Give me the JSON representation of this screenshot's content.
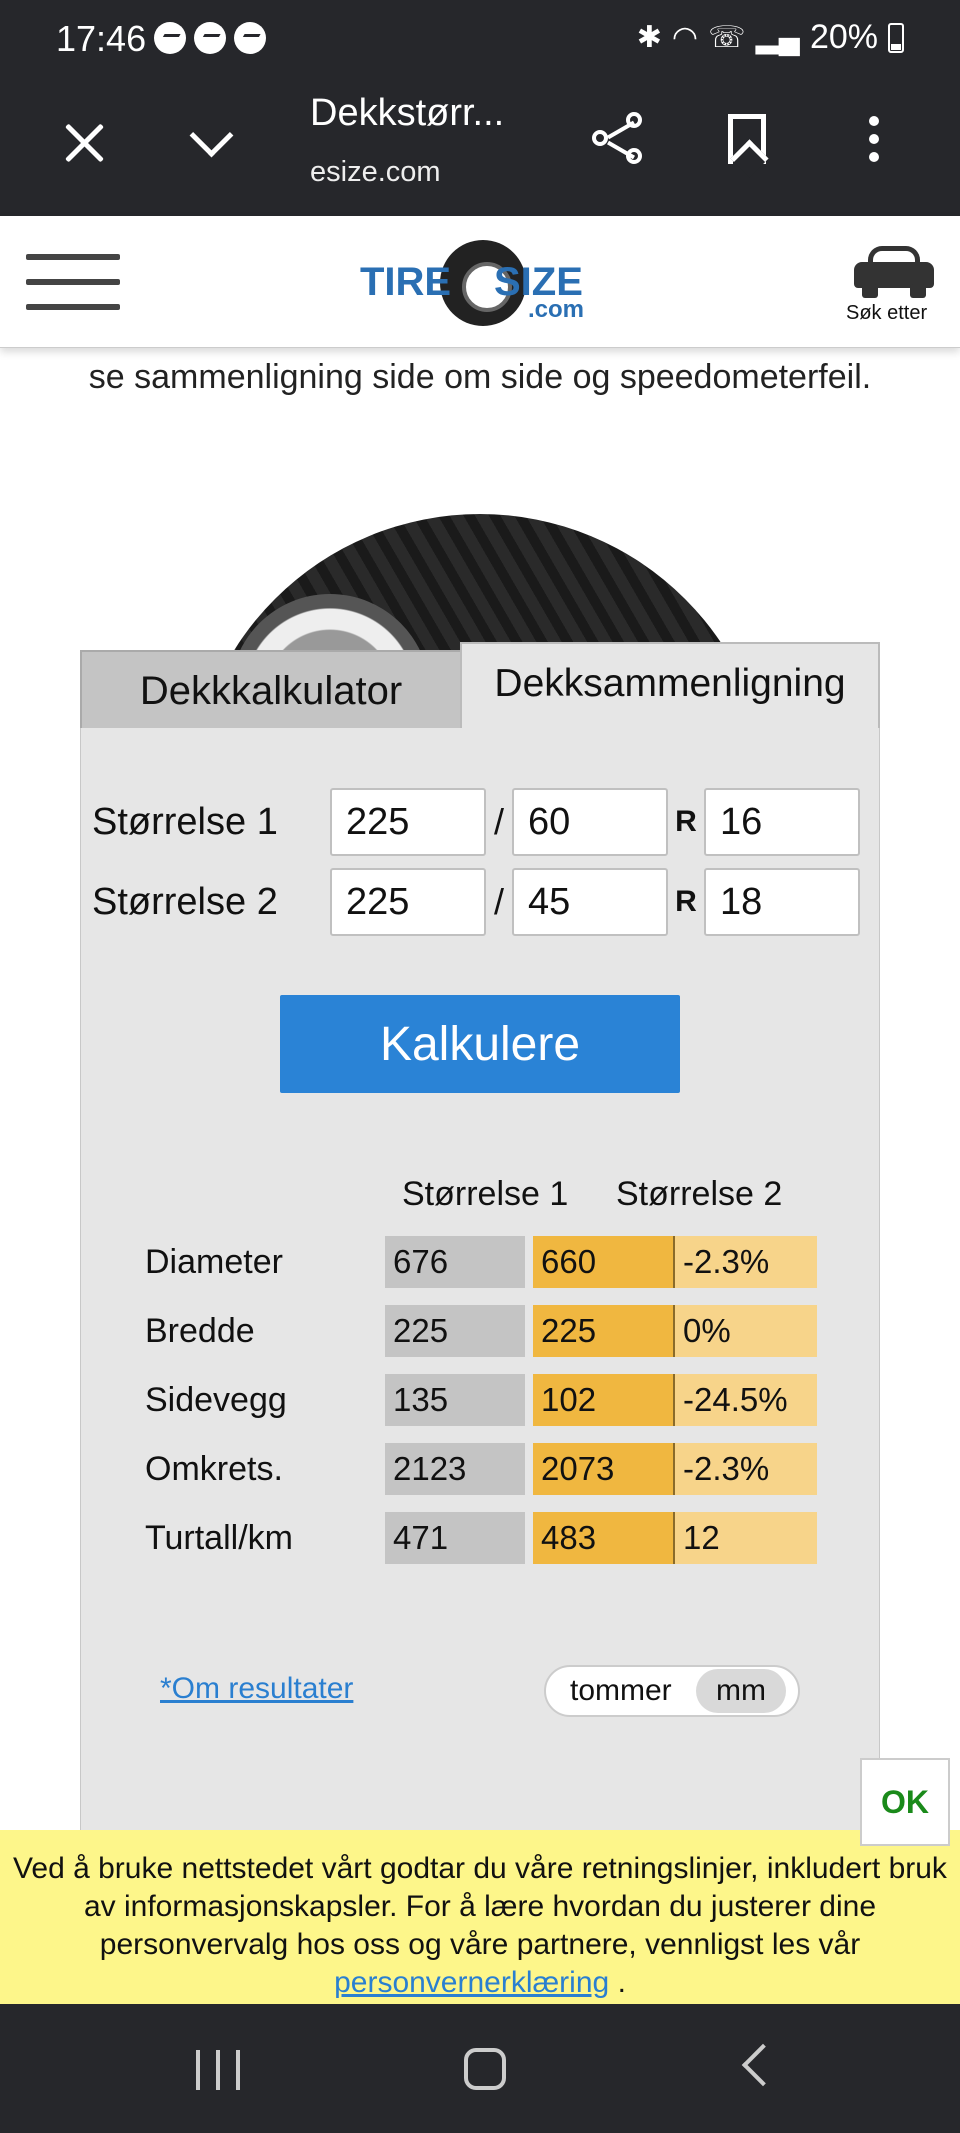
{
  "status_bar": {
    "time": "17:46",
    "battery": "20%"
  },
  "browser": {
    "title": "Dekkstørr...",
    "url": "esize.com"
  },
  "site": {
    "logo_part1": "TIRE",
    "logo_part2": "SIZE",
    "logo_com": ".com",
    "search_label": "Søk etter"
  },
  "intro_text": "se sammenligning side om side og speedometerfeil.",
  "tabs": [
    {
      "label": "Dekkkalkulator"
    },
    {
      "label": "Dekksammenligning"
    }
  ],
  "sizes": [
    {
      "label": "Størrelse 1",
      "width": "225",
      "aspect": "60",
      "rim": "16"
    },
    {
      "label": "Størrelse 2",
      "width": "225",
      "aspect": "45",
      "rim": "18"
    }
  ],
  "separator": "/",
  "rim_marker": "R",
  "calculate_label": "Kalkulere",
  "results": {
    "headers": [
      "Størrelse 1",
      "Størrelse 2"
    ],
    "rows": [
      {
        "name": "Diameter",
        "v1": "676",
        "v2": "660",
        "diff": "-2.3%"
      },
      {
        "name": "Bredde",
        "v1": "225",
        "v2": "225",
        "diff": "0%"
      },
      {
        "name": "Sidevegg",
        "v1": "135",
        "v2": "102",
        "diff": "-24.5%"
      },
      {
        "name": "Omkrets.",
        "v1": "2123",
        "v2": "2073",
        "diff": "-2.3%"
      },
      {
        "name": "Turtall/km",
        "v1": "471",
        "v2": "483",
        "diff": "12"
      }
    ]
  },
  "about_link": "*Om resultater",
  "units": {
    "option1": "tommer",
    "option2": "mm",
    "selected": "mm"
  },
  "ok_label": "OK",
  "cookie": {
    "text": "Ved å bruke nettstedet vårt godtar du våre retningslinjer, inkludert bruk av informasjonskapsler. For å lære hvordan du justerer dine personvervalg hos oss og våre partnere, vennligst les vår",
    "link": "personvernerklæring",
    "end": "."
  },
  "colors": {
    "accent": "#2a83d6",
    "size2_value": "#f0b740",
    "diff_value": "#f7d48a",
    "cookie_bg": "#fdf68a",
    "dark_bar": "#26272b"
  }
}
